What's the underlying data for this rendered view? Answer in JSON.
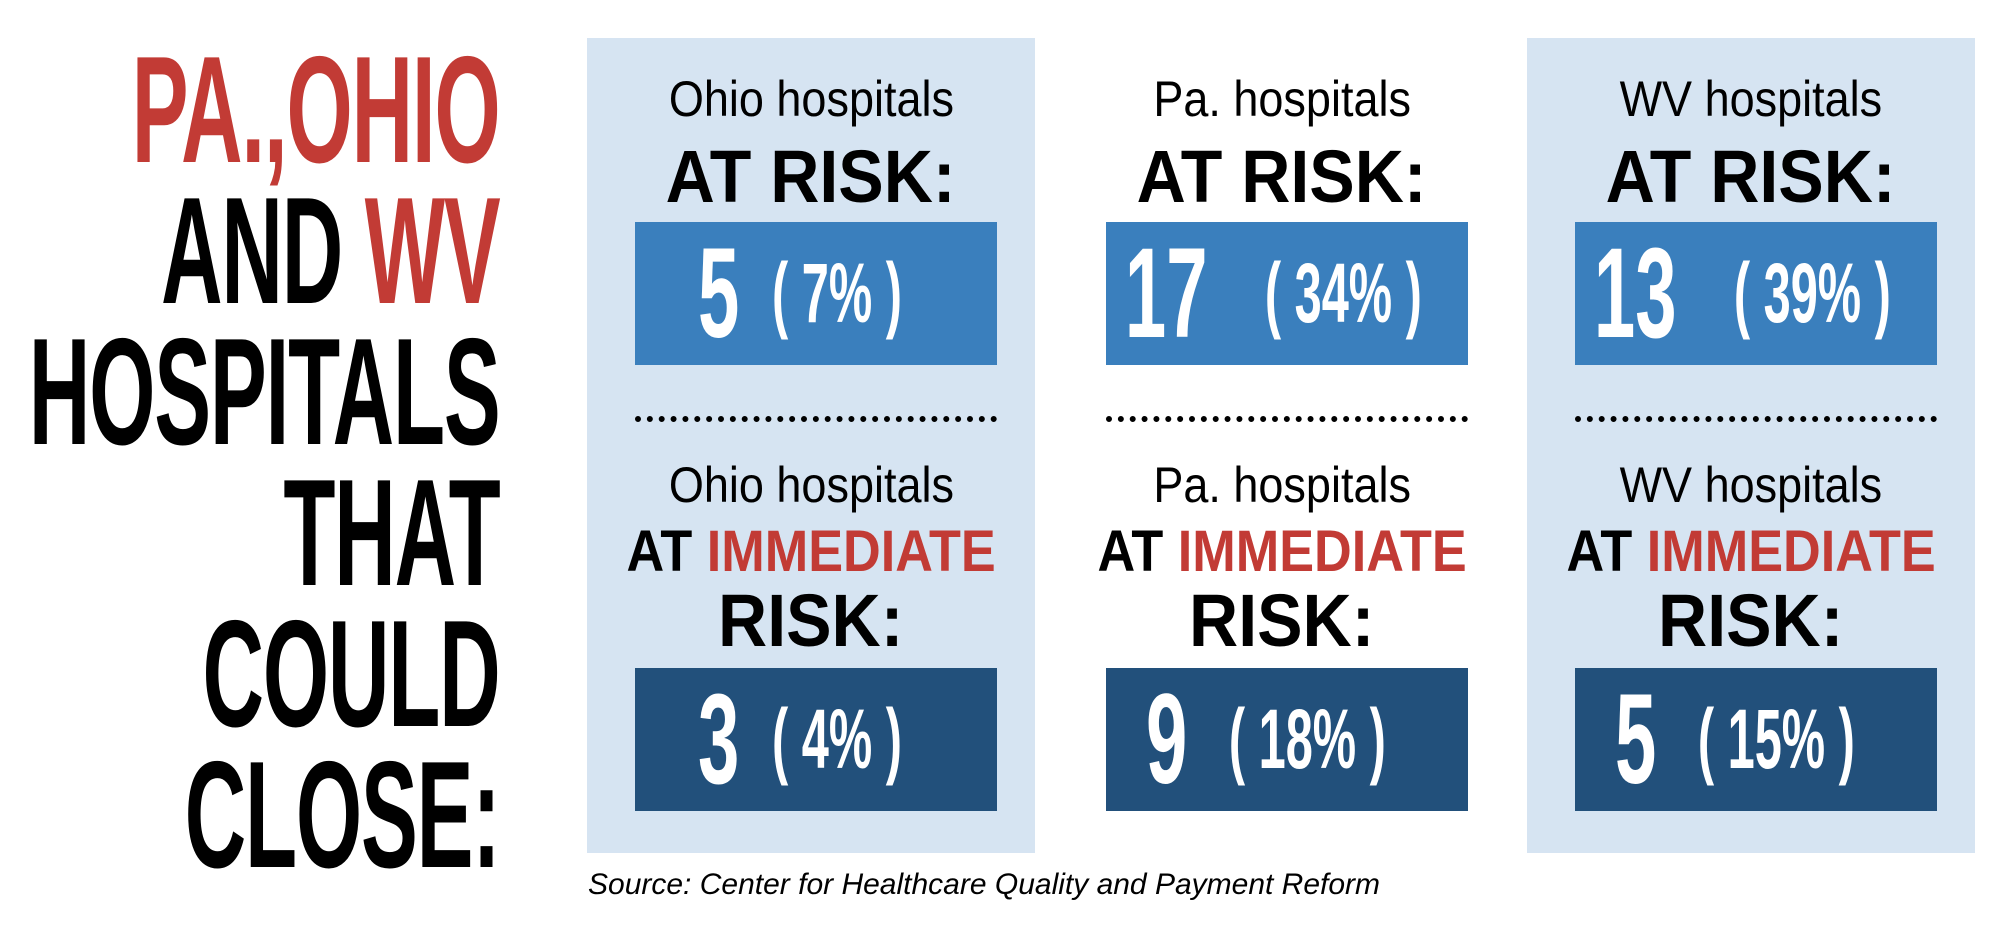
{
  "headline": {
    "line1": "PA.,OHIO",
    "line2_a": "AND ",
    "line2_b": "WV",
    "line3": "HOSPITALS",
    "line4": "THAT",
    "line5": "COULD",
    "line6": "CLOSE:"
  },
  "columns": [
    {
      "title": "Ohio hospitals",
      "at_risk_label": "AT RISK:",
      "at_risk_count": "5",
      "at_risk_pct": "( 7% )",
      "immediate_at": "AT ",
      "immediate_word": "IMMEDIATE",
      "immediate_risk": "RISK:",
      "immediate_count": "3",
      "immediate_pct": "( 4% )"
    },
    {
      "title": "Pa. hospitals",
      "at_risk_label": "AT RISK:",
      "at_risk_count": "17",
      "at_risk_pct": "( 34% )",
      "immediate_at": "AT ",
      "immediate_word": "IMMEDIATE",
      "immediate_risk": "RISK:",
      "immediate_count": "9",
      "immediate_pct": "( 18% )"
    },
    {
      "title": "WV hospitals",
      "at_risk_label": "AT RISK:",
      "at_risk_count": "13",
      "at_risk_pct": "( 39% )",
      "immediate_at": "AT ",
      "immediate_word": "IMMEDIATE",
      "immediate_risk": "RISK:",
      "immediate_count": "5",
      "immediate_pct": "( 15% )"
    }
  ],
  "source": "Source: Center for Healthcare Quality and Payment Reform",
  "colors": {
    "red": "#c23b35",
    "panel_bg": "#d6e4f2",
    "at_risk_box": "#3a7fbd",
    "immediate_box": "#22507b"
  }
}
